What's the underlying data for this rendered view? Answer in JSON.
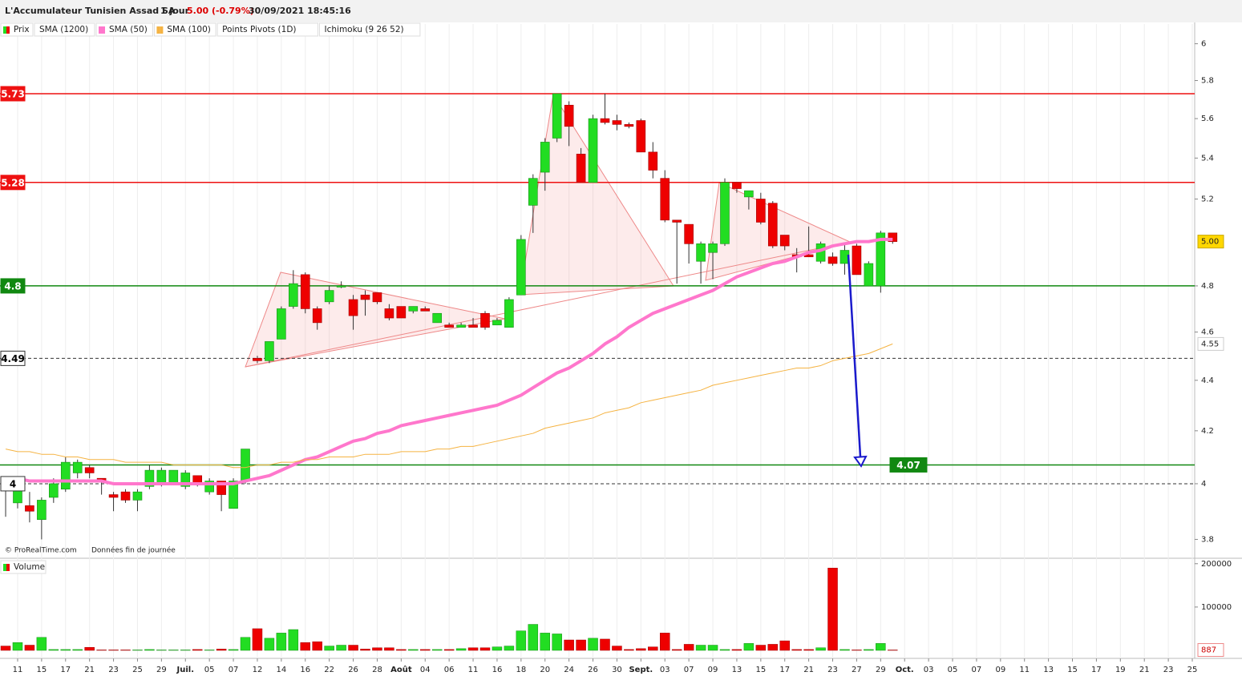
{
  "chart_data": {
    "type": "candlestick",
    "title": "L'Accumulateur Tunisien Assad SA",
    "period": "1 jour",
    "change": "5.00 (-0.79%)",
    "timestamp": "30/09/2021 18:45:16",
    "price_label": "Prix",
    "copyright": "© ProRealTime.com",
    "note": "Données fin de journée",
    "up_color": "#22dd22",
    "down_color": "#ee0000",
    "log_scale": true,
    "ylim": [
      3.74,
      6.11
    ],
    "yticks": [
      3.8,
      4,
      4.2,
      4.4,
      4.6,
      4.8,
      5.2,
      5.4,
      5.6,
      5.8,
      6
    ],
    "xlim": [
      -0.47,
      99.2
    ],
    "xticks": [
      {
        "value": 1,
        "label": "11"
      },
      {
        "value": 3,
        "label": "15"
      },
      {
        "value": 5,
        "label": "17"
      },
      {
        "value": 7,
        "label": "21"
      },
      {
        "value": 9,
        "label": "23"
      },
      {
        "value": 11,
        "label": "25"
      },
      {
        "value": 13,
        "label": "29"
      },
      {
        "value": 15,
        "label": "Juil."
      },
      {
        "value": 17,
        "label": "05"
      },
      {
        "value": 19,
        "label": "07"
      },
      {
        "value": 21,
        "label": "12"
      },
      {
        "value": 23,
        "label": "14"
      },
      {
        "value": 25,
        "label": "16"
      },
      {
        "value": 27,
        "label": "22"
      },
      {
        "value": 29,
        "label": "26"
      },
      {
        "value": 31,
        "label": "28"
      },
      {
        "value": 33,
        "label": "Août"
      },
      {
        "value": 35,
        "label": "04"
      },
      {
        "value": 37,
        "label": "06"
      },
      {
        "value": 39,
        "label": "11"
      },
      {
        "value": 41,
        "label": "16"
      },
      {
        "value": 43,
        "label": "18"
      },
      {
        "value": 45,
        "label": "20"
      },
      {
        "value": 47,
        "label": "24"
      },
      {
        "value": 49,
        "label": "26"
      },
      {
        "value": 51,
        "label": "30"
      },
      {
        "value": 53,
        "label": "Sept."
      },
      {
        "value": 55,
        "label": "03"
      },
      {
        "value": 57,
        "label": "07"
      },
      {
        "value": 59,
        "label": "09"
      },
      {
        "value": 61,
        "label": "13"
      },
      {
        "value": 63,
        "label": "15"
      },
      {
        "value": 65,
        "label": "17"
      },
      {
        "value": 67,
        "label": "21"
      },
      {
        "value": 69,
        "label": "23"
      },
      {
        "value": 71,
        "label": "27"
      },
      {
        "value": 73,
        "label": "29"
      },
      {
        "value": 75,
        "label": "Oct."
      },
      {
        "value": 77,
        "label": "03"
      },
      {
        "value": 79,
        "label": "05"
      },
      {
        "value": 81,
        "label": "07"
      },
      {
        "value": 83,
        "label": "09"
      },
      {
        "value": 85,
        "label": "11"
      },
      {
        "value": 87,
        "label": "13"
      },
      {
        "value": 89,
        "label": "15"
      },
      {
        "value": 91,
        "label": "17"
      },
      {
        "value": 93,
        "label": "19"
      },
      {
        "value": 95,
        "label": "21"
      },
      {
        "value": 97,
        "label": "23"
      },
      {
        "value": 99,
        "label": "25"
      }
    ],
    "open": [
      4.02,
      3.93,
      3.92,
      3.87,
      3.95,
      3.98,
      4.04,
      4.06,
      4.02,
      3.96,
      3.97,
      3.94,
      3.99,
      4.0,
      4.0,
      3.99,
      4.03,
      3.97,
      4.01,
      3.91,
      4.01,
      4.49,
      4.48,
      4.57,
      4.71,
      4.85,
      4.7,
      4.73,
      4.8,
      4.74,
      4.76,
      4.77,
      4.7,
      4.71,
      4.69,
      4.7,
      4.64,
      4.63,
      4.62,
      4.63,
      4.68,
      4.63,
      4.62,
      4.76,
      5.17,
      5.33,
      5.5,
      5.67,
      5.42,
      5.28,
      5.6,
      5.59,
      5.57,
      5.59,
      5.43,
      5.3,
      5.1,
      5.08,
      4.91,
      4.95,
      4.99,
      5.28,
      5.21,
      5.2,
      5.18,
      5.03,
      4.94,
      4.94,
      4.91,
      4.93,
      4.9,
      4.98,
      4.8,
      4.8,
      5.04
    ],
    "high": [
      4.02,
      3.99,
      3.97,
      3.95,
      4.02,
      4.1,
      4.09,
      4.07,
      4.02,
      3.97,
      3.98,
      3.98,
      4.07,
      4.06,
      4.05,
      4.05,
      4.03,
      4.02,
      4.01,
      4.02,
      4.13,
      4.5,
      4.56,
      4.71,
      4.87,
      4.86,
      4.71,
      4.8,
      4.82,
      4.76,
      4.78,
      4.77,
      4.72,
      4.71,
      4.71,
      4.71,
      4.68,
      4.64,
      4.64,
      4.66,
      4.69,
      4.66,
      4.75,
      5.03,
      5.32,
      5.5,
      5.73,
      5.69,
      5.45,
      5.62,
      5.73,
      5.62,
      5.58,
      5.6,
      5.48,
      5.34,
      5.1,
      5.08,
      5.0,
      5.0,
      5.3,
      5.28,
      5.24,
      5.23,
      5.19,
      5.03,
      4.97,
      5.07,
      5.0,
      4.95,
      4.99,
      4.99,
      4.91,
      5.05,
      5.04
    ],
    "low": [
      3.88,
      3.91,
      3.86,
      3.8,
      3.93,
      3.97,
      4.02,
      4.02,
      3.96,
      3.9,
      3.93,
      3.9,
      3.98,
      3.99,
      4.0,
      3.98,
      3.99,
      3.96,
      3.9,
      3.91,
      4.0,
      4.47,
      4.47,
      4.57,
      4.7,
      4.68,
      4.61,
      4.72,
      4.79,
      4.61,
      4.67,
      4.72,
      4.65,
      4.66,
      4.68,
      4.69,
      4.64,
      4.62,
      4.62,
      4.62,
      4.61,
      4.63,
      4.62,
      4.76,
      5.04,
      5.24,
      5.48,
      5.46,
      5.28,
      5.28,
      5.57,
      5.54,
      5.55,
      5.43,
      5.3,
      5.09,
      4.81,
      4.9,
      4.81,
      4.83,
      4.98,
      5.23,
      5.15,
      5.08,
      4.97,
      4.96,
      4.86,
      4.93,
      4.9,
      4.89,
      4.85,
      4.85,
      4.8,
      4.77,
      4.99
    ],
    "close": [
      4.01,
      3.98,
      3.9,
      3.94,
      4.0,
      4.08,
      4.08,
      4.04,
      4.01,
      3.95,
      3.94,
      3.97,
      4.05,
      4.05,
      4.05,
      4.04,
      4.0,
      4.01,
      3.96,
      4.01,
      4.13,
      4.48,
      4.56,
      4.7,
      4.81,
      4.7,
      4.64,
      4.78,
      4.8,
      4.67,
      4.74,
      4.73,
      4.66,
      4.66,
      4.71,
      4.69,
      4.68,
      4.62,
      4.63,
      4.62,
      4.62,
      4.65,
      4.74,
      5.01,
      5.3,
      5.48,
      5.73,
      5.56,
      5.28,
      5.6,
      5.58,
      5.57,
      5.56,
      5.43,
      5.34,
      5.1,
      5.09,
      4.99,
      4.99,
      4.99,
      5.28,
      5.25,
      5.24,
      5.09,
      4.98,
      4.98,
      4.93,
      4.93,
      4.99,
      4.9,
      4.96,
      4.85,
      4.9,
      5.04,
      5.0
    ],
    "last_close_label": "5.00",
    "indicators": [
      {
        "name": "SMA (1200)"
      },
      {
        "name": "SMA (50)",
        "color": "#ff77cc",
        "width": 4,
        "values": [
          4.02,
          4.02,
          4.01,
          4.01,
          4.01,
          4.01,
          4.01,
          4.01,
          4.01,
          4.0,
          4.0,
          4.0,
          4.0,
          4.0,
          4.0,
          4.0,
          4.0,
          4.0,
          4.0,
          4.0,
          4.01,
          4.02,
          4.03,
          4.05,
          4.07,
          4.09,
          4.1,
          4.12,
          4.14,
          4.16,
          4.17,
          4.19,
          4.2,
          4.22,
          4.23,
          4.24,
          4.25,
          4.26,
          4.27,
          4.28,
          4.29,
          4.3,
          4.32,
          4.34,
          4.37,
          4.4,
          4.43,
          4.45,
          4.48,
          4.51,
          4.55,
          4.58,
          4.62,
          4.65,
          4.68,
          4.7,
          4.72,
          4.74,
          4.76,
          4.78,
          4.81,
          4.84,
          4.86,
          4.88,
          4.9,
          4.91,
          4.93,
          4.95,
          4.96,
          4.98,
          4.99,
          5.0,
          5.0,
          5.01,
          5.01
        ]
      },
      {
        "name": "SMA (100)",
        "color": "#f5b342",
        "width": 1,
        "last_label": "4.55",
        "values": [
          4.13,
          4.12,
          4.12,
          4.11,
          4.11,
          4.1,
          4.1,
          4.09,
          4.09,
          4.09,
          4.08,
          4.08,
          4.08,
          4.08,
          4.07,
          4.07,
          4.07,
          4.07,
          4.07,
          4.06,
          4.06,
          4.07,
          4.07,
          4.08,
          4.08,
          4.09,
          4.09,
          4.1,
          4.1,
          4.1,
          4.11,
          4.11,
          4.11,
          4.12,
          4.12,
          4.12,
          4.13,
          4.13,
          4.14,
          4.14,
          4.15,
          4.16,
          4.17,
          4.18,
          4.19,
          4.21,
          4.22,
          4.23,
          4.24,
          4.25,
          4.27,
          4.28,
          4.29,
          4.31,
          4.32,
          4.33,
          4.34,
          4.35,
          4.36,
          4.38,
          4.39,
          4.4,
          4.41,
          4.42,
          4.43,
          4.44,
          4.45,
          4.45,
          4.46,
          4.48,
          4.49,
          4.5,
          4.51,
          4.53,
          4.55
        ]
      },
      {
        "name": "Points Pivots (1D)"
      },
      {
        "name": "Ichimoku (9 26 52)"
      }
    ],
    "levels": [
      {
        "value": 5.73,
        "color": "#ee1111",
        "style": "solid",
        "label_side": "left"
      },
      {
        "value": 5.28,
        "color": "#ee1111",
        "style": "solid",
        "label_side": "left"
      },
      {
        "value": 4.8,
        "color": "#118811",
        "style": "solid",
        "label_side": "left"
      },
      {
        "value": 4.49,
        "color": "#333333",
        "style": "dashed",
        "label_side": "left"
      },
      {
        "value": 4.07,
        "color": "#118811",
        "style": "solid",
        "label_side": "right"
      },
      {
        "value": 4,
        "color": "#333333",
        "style": "dashed",
        "label_side": "left"
      }
    ],
    "volume": {
      "label": "Volume",
      "ylim": [
        0,
        207000
      ],
      "yticks": [
        100000,
        200000
      ],
      "values": [
        10000,
        18000,
        12000,
        30000,
        2000,
        2000,
        2000,
        7000,
        1000,
        1000,
        1000,
        1000,
        2000,
        1000,
        1000,
        1000,
        2000,
        1000,
        3000,
        2000,
        30000,
        50000,
        28000,
        40000,
        48000,
        18000,
        20000,
        10000,
        12000,
        12000,
        3000,
        6000,
        6000,
        2000,
        2000,
        2000,
        2000,
        2000,
        4000,
        6000,
        6000,
        8000,
        10000,
        45000,
        60000,
        40000,
        38000,
        24000,
        24000,
        28000,
        26000,
        10000,
        2000,
        4000,
        8000,
        40000,
        2000,
        14000,
        12000,
        12000,
        2000,
        2000,
        16000,
        12000,
        14000,
        22000,
        2000,
        2000,
        6000,
        190000,
        2000,
        1000,
        2000,
        16000,
        887
      ]
    }
  }
}
